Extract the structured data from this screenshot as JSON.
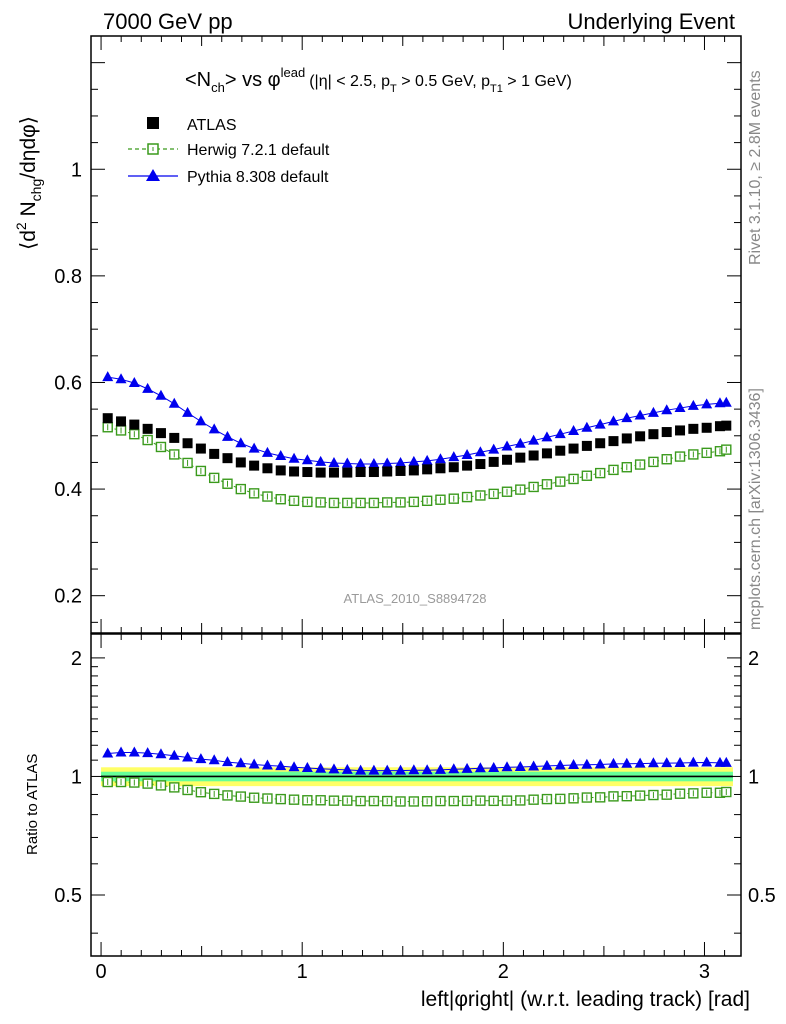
{
  "header": {
    "left": "7000 GeV pp",
    "right": "Underlying Event"
  },
  "side_labels": {
    "rivet": "Rivet 3.1.10, ≥ 2.8M events",
    "mcplots": "mcplots.cern.ch [arXiv:1306.3436]"
  },
  "analysis_id": "ATLAS_2010_S8894728",
  "chart_data": [
    {
      "type": "scatter",
      "title": "<Nch> vs φlead (|η| < 2.5, pT > 0.5 GeV, pT1 > 1 GeV)",
      "title_parts": {
        "lt": "<N",
        "sub1": "ch",
        "mid": "> vs φ",
        "sup": "lead",
        "cut_a": "(|η| < 2.5, p",
        "sub2": "T",
        "cut_b": " > 0.5 GeV, p",
        "sub3": "T1",
        "cut_c": " > 1 GeV)"
      },
      "ylabel": "⟨d² Nchg/dηdφ⟩",
      "ylabel_parts": {
        "open": "⟨d",
        "sup": "2",
        "n": " N",
        "sub": "chg",
        "rest": "/dηdφ⟩"
      },
      "xlim": [
        -0.05,
        3.1816
      ],
      "ylim": [
        0.13,
        1.25
      ],
      "yticks": [
        0.2,
        0.4,
        0.6,
        0.8,
        1.0
      ],
      "ytick_labels": [
        "0.2",
        "0.4",
        "0.6",
        "0.8",
        "1"
      ],
      "legend_position": "top-left",
      "x": [
        0.0331,
        0.0993,
        0.1654,
        0.2316,
        0.2978,
        0.364,
        0.4301,
        0.4963,
        0.5625,
        0.6286,
        0.6948,
        0.761,
        0.8272,
        0.8933,
        0.9595,
        1.0257,
        1.0918,
        1.158,
        1.2242,
        1.2904,
        1.3565,
        1.4227,
        1.4889,
        1.5551,
        1.6212,
        1.6874,
        1.7536,
        1.8197,
        1.8859,
        1.9521,
        2.0183,
        2.0844,
        2.1506,
        2.2168,
        2.283,
        2.3491,
        2.4153,
        2.4815,
        2.5476,
        2.6138,
        2.68,
        2.7462,
        2.8123,
        2.8785,
        2.9447,
        3.0109,
        3.077,
        3.1085
      ],
      "series": [
        {
          "name": "ATLAS",
          "marker": "filled-square",
          "color": "#000000",
          "values": [
            0.533,
            0.527,
            0.521,
            0.513,
            0.505,
            0.496,
            0.486,
            0.476,
            0.466,
            0.458,
            0.45,
            0.444,
            0.439,
            0.435,
            0.433,
            0.432,
            0.431,
            0.431,
            0.431,
            0.432,
            0.432,
            0.433,
            0.434,
            0.435,
            0.437,
            0.439,
            0.441,
            0.444,
            0.447,
            0.451,
            0.455,
            0.459,
            0.463,
            0.467,
            0.472,
            0.476,
            0.481,
            0.486,
            0.49,
            0.495,
            0.499,
            0.503,
            0.507,
            0.51,
            0.513,
            0.515,
            0.518,
            0.519
          ]
        },
        {
          "name": "Herwig 7.2.1 default",
          "marker": "open-square",
          "color": "#3a9a1c",
          "values": [
            0.516,
            0.51,
            0.503,
            0.492,
            0.479,
            0.465,
            0.449,
            0.434,
            0.421,
            0.41,
            0.4,
            0.392,
            0.386,
            0.381,
            0.378,
            0.376,
            0.375,
            0.374,
            0.374,
            0.374,
            0.374,
            0.375,
            0.375,
            0.376,
            0.378,
            0.38,
            0.382,
            0.385,
            0.388,
            0.391,
            0.395,
            0.399,
            0.404,
            0.409,
            0.414,
            0.419,
            0.425,
            0.43,
            0.436,
            0.441,
            0.446,
            0.451,
            0.456,
            0.461,
            0.465,
            0.468,
            0.471,
            0.474
          ]
        },
        {
          "name": "Pythia 8.308 default",
          "marker": "filled-triangle",
          "color": "#0000ee",
          "values": [
            0.61,
            0.606,
            0.599,
            0.588,
            0.575,
            0.56,
            0.543,
            0.527,
            0.512,
            0.498,
            0.486,
            0.476,
            0.468,
            0.462,
            0.457,
            0.454,
            0.451,
            0.449,
            0.448,
            0.447,
            0.447,
            0.448,
            0.449,
            0.451,
            0.453,
            0.456,
            0.46,
            0.464,
            0.469,
            0.474,
            0.48,
            0.485,
            0.491,
            0.497,
            0.503,
            0.509,
            0.515,
            0.521,
            0.527,
            0.533,
            0.538,
            0.543,
            0.548,
            0.552,
            0.556,
            0.559,
            0.561,
            0.562
          ]
        }
      ]
    },
    {
      "type": "scatter",
      "ylabel": "Ratio to ATLAS",
      "xlabel": "left|φright| (w.r.t. leading track) [rad]",
      "xlim": [
        -0.05,
        3.1816
      ],
      "xticks": [
        0,
        1,
        2,
        3
      ],
      "xtick_labels": [
        "0",
        "1",
        "2",
        "3"
      ],
      "ylim": [
        0.35,
        2.3
      ],
      "yscale": "log",
      "yticks": [
        0.5,
        1,
        2
      ],
      "ytick_labels": [
        "0.5",
        "1",
        "2"
      ],
      "reference_line": 1.0,
      "band_colors": [
        "#ffff66",
        "#66ff99"
      ],
      "band_outer": [
        0.945,
        1.055
      ],
      "band_inner": [
        0.972,
        1.028
      ],
      "series": [
        {
          "name": "Herwig 7.2.1 default",
          "color": "#3a9a1c",
          "values": [
            0.968,
            0.968,
            0.965,
            0.959,
            0.949,
            0.938,
            0.924,
            0.912,
            0.903,
            0.895,
            0.889,
            0.883,
            0.879,
            0.876,
            0.873,
            0.87,
            0.87,
            0.868,
            0.868,
            0.866,
            0.866,
            0.866,
            0.864,
            0.864,
            0.865,
            0.866,
            0.866,
            0.867,
            0.868,
            0.867,
            0.868,
            0.869,
            0.873,
            0.876,
            0.877,
            0.88,
            0.884,
            0.885,
            0.89,
            0.891,
            0.894,
            0.897,
            0.899,
            0.904,
            0.906,
            0.909,
            0.909,
            0.913
          ]
        },
        {
          "name": "Pythia 8.308 default",
          "color": "#0000ee",
          "values": [
            1.144,
            1.15,
            1.15,
            1.146,
            1.139,
            1.129,
            1.117,
            1.107,
            1.099,
            1.087,
            1.08,
            1.072,
            1.066,
            1.062,
            1.055,
            1.051,
            1.046,
            1.042,
            1.039,
            1.035,
            1.035,
            1.035,
            1.035,
            1.037,
            1.037,
            1.039,
            1.043,
            1.045,
            1.049,
            1.051,
            1.055,
            1.057,
            1.06,
            1.064,
            1.066,
            1.069,
            1.071,
            1.072,
            1.076,
            1.077,
            1.078,
            1.08,
            1.081,
            1.082,
            1.084,
            1.085,
            1.083,
            1.083
          ]
        }
      ]
    }
  ]
}
